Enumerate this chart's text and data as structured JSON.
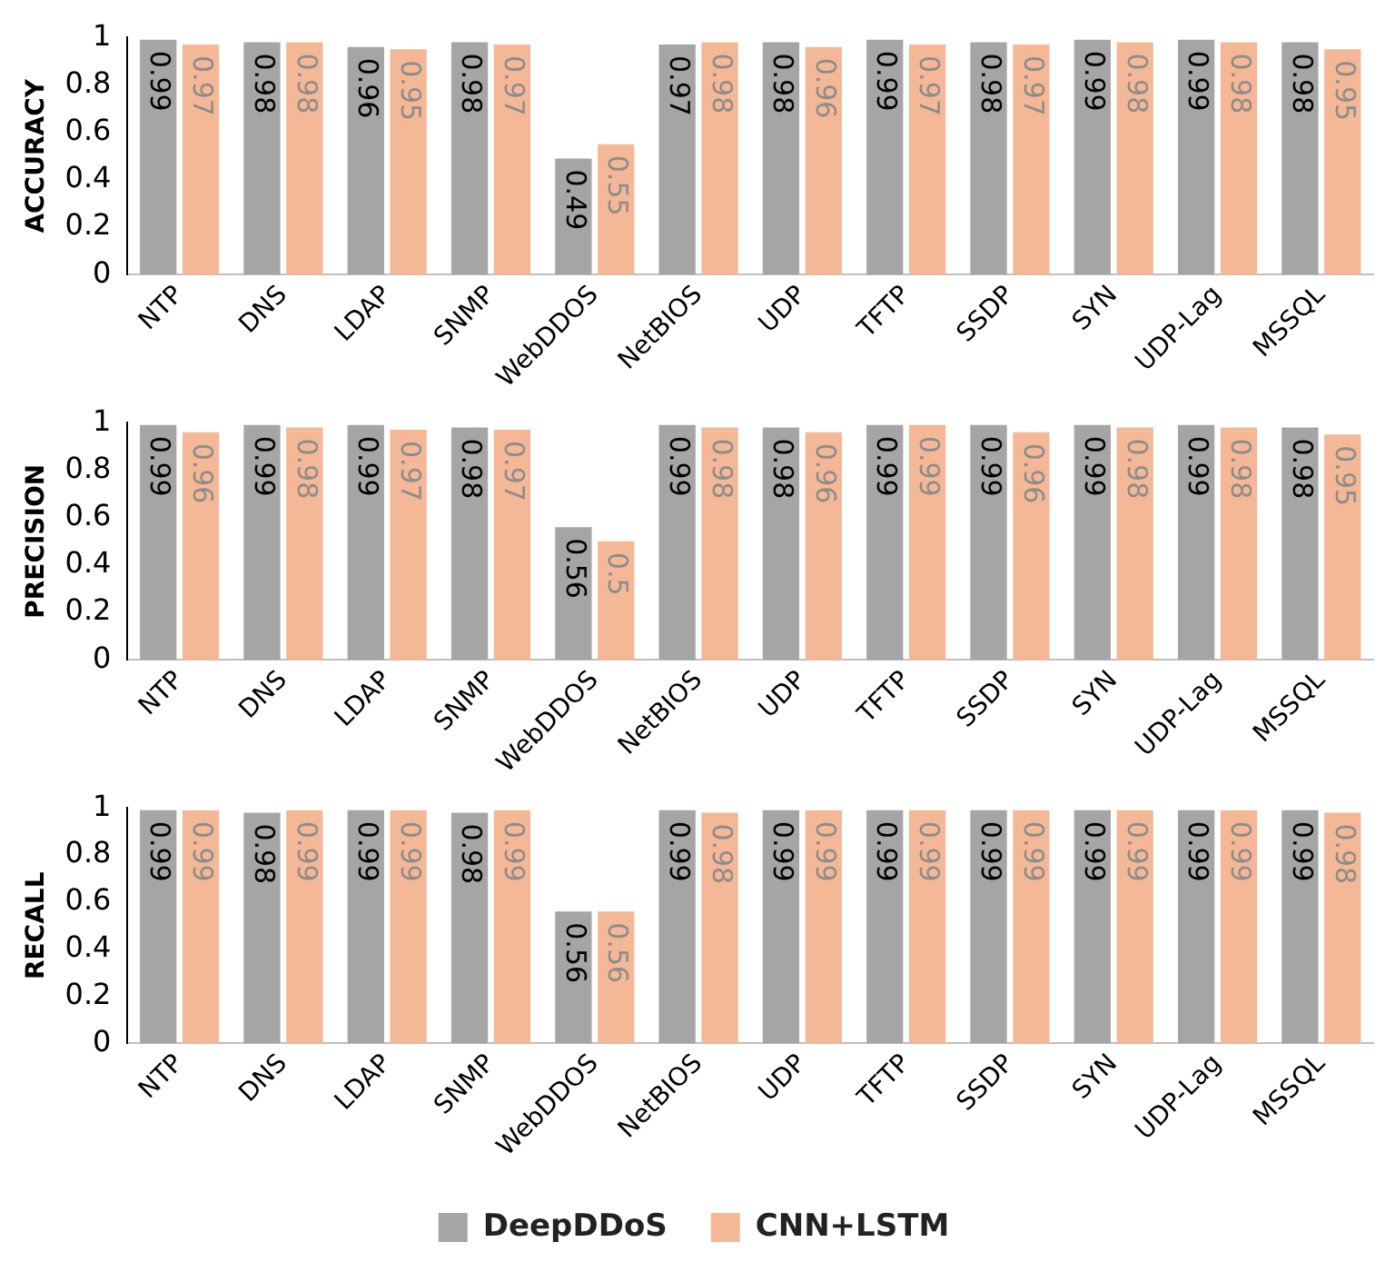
{
  "chart_data": [
    {
      "type": "bar",
      "ylabel": "ACCURACY",
      "categories": [
        "NTP",
        "DNS",
        "LDAP",
        "SNMP",
        "WebDDOS",
        "NetBIOS",
        "UDP",
        "TFTP",
        "SSDP",
        "SYN",
        "UDP-Lag",
        "MSSQL"
      ],
      "ylim": [
        0,
        1
      ],
      "yticks": [
        0,
        0.2,
        0.4,
        0.6,
        0.8,
        1
      ],
      "grid": false,
      "legend": false,
      "data_labels": true,
      "series": [
        {
          "color": "#a5a5a5",
          "values": [
            0.99,
            0.98,
            0.96,
            0.98,
            0.49,
            0.97,
            0.98,
            0.99,
            0.98,
            0.99,
            0.99,
            0.98
          ]
        },
        {
          "color": "#f5b896",
          "values": [
            0.97,
            0.98,
            0.95,
            0.97,
            0.55,
            0.98,
            0.96,
            0.97,
            0.97,
            0.98,
            0.98,
            0.95
          ]
        }
      ]
    },
    {
      "type": "bar",
      "ylabel": "PRECISION",
      "categories": [
        "NTP",
        "DNS",
        "LDAP",
        "SNMP",
        "WebDDOS",
        "NetBIOS",
        "UDP",
        "TFTP",
        "SSDP",
        "SYN",
        "UDP-Lag",
        "MSSQL"
      ],
      "ylim": [
        0,
        1
      ],
      "yticks": [
        0,
        0.2,
        0.4,
        0.6,
        0.8,
        1
      ],
      "grid": false,
      "legend": false,
      "data_labels": true,
      "series": [
        {
          "color": "#a5a5a5",
          "values": [
            0.99,
            0.99,
            0.99,
            0.98,
            0.56,
            0.99,
            0.98,
            0.99,
            0.99,
            0.99,
            0.99,
            0.98
          ]
        },
        {
          "color": "#f5b896",
          "values": [
            0.96,
            0.98,
            0.97,
            0.97,
            0.5,
            0.98,
            0.96,
            0.99,
            0.96,
            0.98,
            0.98,
            0.95
          ]
        }
      ]
    },
    {
      "type": "bar",
      "ylabel": "RECALL",
      "categories": [
        "NTP",
        "DNS",
        "LDAP",
        "SNMP",
        "WebDDOS",
        "NetBIOS",
        "UDP",
        "TFTP",
        "SSDP",
        "SYN",
        "UDP-Lag",
        "MSSQL"
      ],
      "ylim": [
        0,
        1
      ],
      "yticks": [
        0,
        0.2,
        0.4,
        0.6,
        0.8,
        1
      ],
      "grid": false,
      "legend": "bottom",
      "data_labels": true,
      "series": [
        {
          "name": "DeepDDoS",
          "color": "#a5a5a5",
          "values": [
            0.99,
            0.98,
            0.99,
            0.98,
            0.56,
            0.99,
            0.99,
            0.99,
            0.99,
            0.99,
            0.99,
            0.99
          ]
        },
        {
          "name": "CNN+LSTM",
          "color": "#f5b896",
          "values": [
            0.99,
            0.99,
            0.99,
            0.99,
            0.56,
            0.98,
            0.99,
            0.99,
            0.99,
            0.99,
            0.99,
            0.98
          ]
        }
      ]
    }
  ]
}
